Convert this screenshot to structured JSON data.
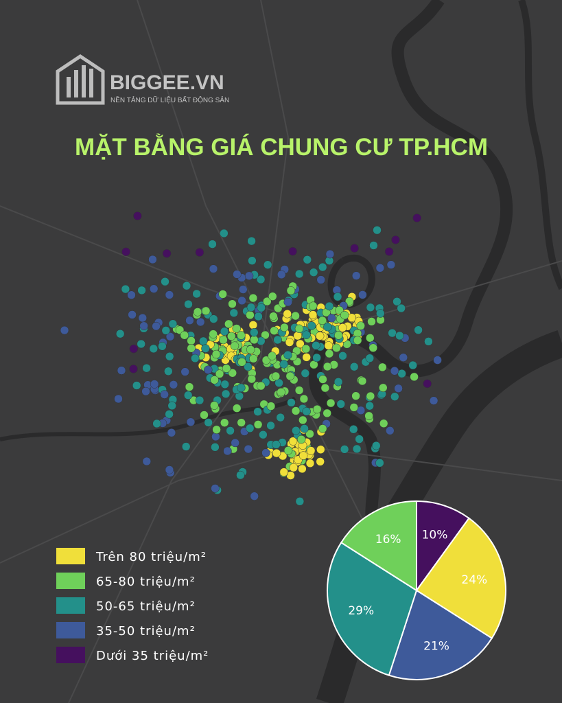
{
  "brand": {
    "name": "BIGGEE.VN",
    "tagline": "NỀN TẢNG DỮ LIỆU BẤT ĐỘNG SẢN"
  },
  "title": "MẶT BẰNG GIÁ CHUNG CƯ TP.HCM",
  "legend": [
    {
      "name": "Trên 80 triệu/m²",
      "color": "#f0df3a"
    },
    {
      "name": "65-80 triệu/m²",
      "color": "#6fd05a"
    },
    {
      "name": "50-65 triệu/m²",
      "color": "#23908a"
    },
    {
      "name": "35-50 triệu/m²",
      "color": "#3e5a9a"
    },
    {
      "name": "Dưới 35 triệu/m²",
      "color": "#45105e"
    }
  ],
  "chart_data": {
    "type": "pie",
    "values": [
      10,
      24,
      21,
      29,
      16
    ],
    "value_labels": [
      "10%",
      "24%",
      "21%",
      "29%",
      "16%"
    ],
    "colors": [
      "#45105e",
      "#f0df3a",
      "#3e5a9a",
      "#23908a",
      "#6fd05a"
    ]
  }
}
